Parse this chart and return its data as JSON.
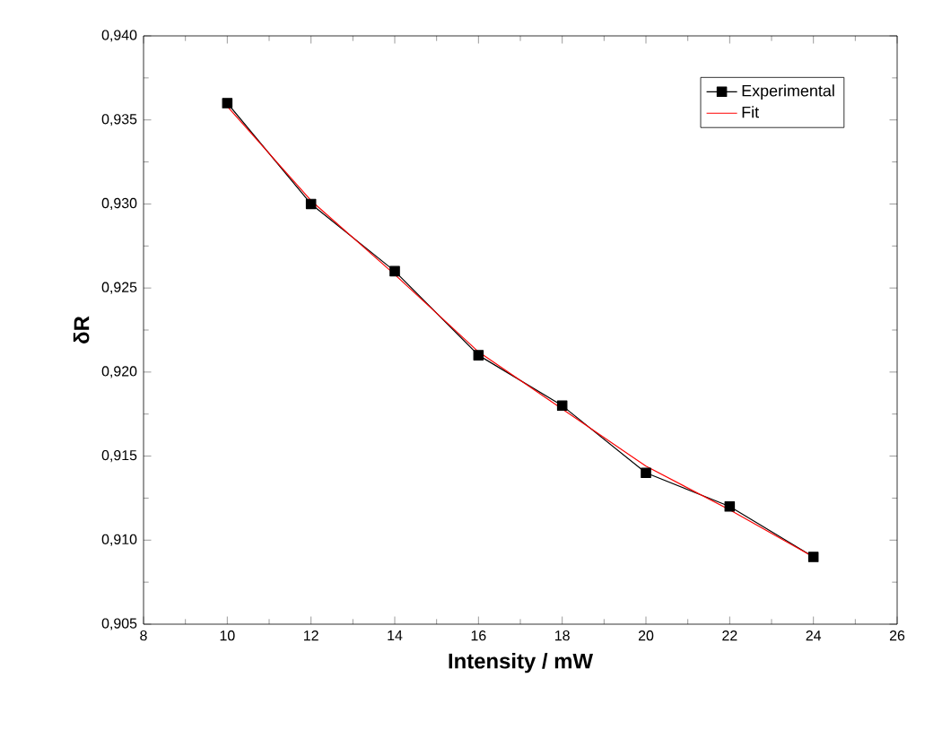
{
  "chart_data": {
    "type": "line",
    "xlabel": "Intensity / mW",
    "ylabel": "δR",
    "x": [
      10,
      12,
      14,
      16,
      18,
      20,
      22,
      24
    ],
    "series": [
      {
        "name": "Experimental",
        "color": "#000000",
        "marker": "square",
        "values": [
          0.936,
          0.93,
          0.926,
          0.921,
          0.918,
          0.914,
          0.912,
          0.909
        ]
      },
      {
        "name": "Fit",
        "color": "#ff0000",
        "marker": "none",
        "values": [
          0.9358,
          0.9302,
          0.9258,
          0.9212,
          0.9178,
          0.9144,
          0.9118,
          0.909
        ]
      }
    ],
    "xlim": [
      8,
      26
    ],
    "xticks": [
      8,
      10,
      12,
      14,
      16,
      18,
      20,
      22,
      24,
      26
    ],
    "ylim": [
      0.905,
      0.94
    ],
    "yticks": [
      {
        "value": 0.905,
        "label": "0,905"
      },
      {
        "value": 0.91,
        "label": "0,910"
      },
      {
        "value": 0.915,
        "label": "0,915"
      },
      {
        "value": 0.92,
        "label": "0,920"
      },
      {
        "value": 0.925,
        "label": "0,925"
      },
      {
        "value": 0.93,
        "label": "0,930"
      },
      {
        "value": 0.935,
        "label": "0,935"
      },
      {
        "value": 0.94,
        "label": "0,940"
      }
    ],
    "grid": false,
    "legend": "top right",
    "line_style": "solid"
  }
}
